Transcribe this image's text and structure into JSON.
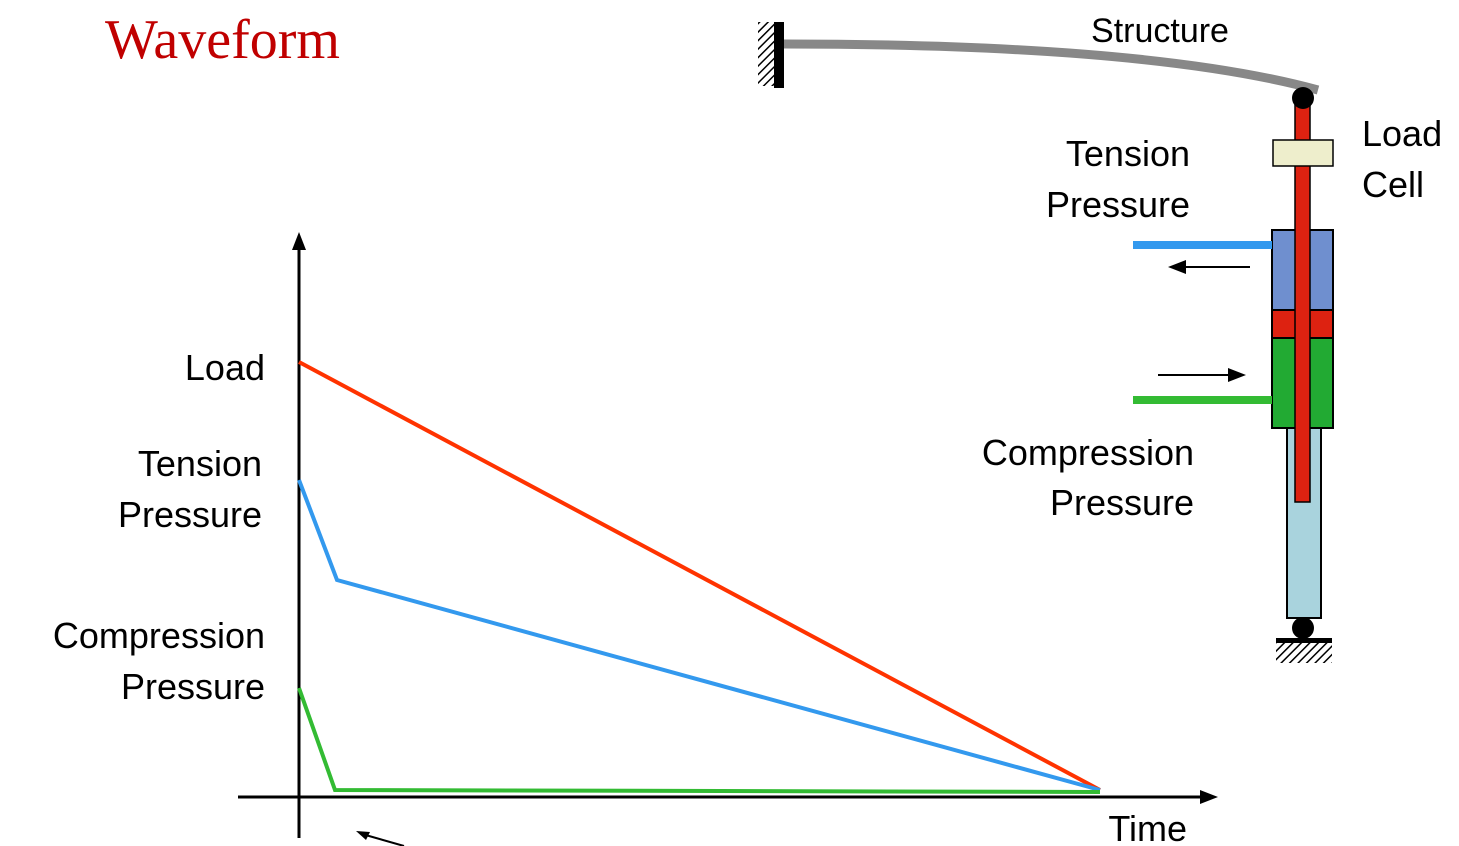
{
  "title": "Waveform",
  "colors": {
    "title": "#c00000",
    "load": "#ff3300",
    "tension": "#3399ee",
    "compression": "#33bb33",
    "structure": "#888888",
    "cylinder_blue": "#6f8fcf",
    "cylinder_green": "#22aa33",
    "piston_red": "#dd2211",
    "load_cell": "#eeeecc",
    "lower_tube": "#a9d3dd"
  },
  "graph": {
    "y_labels": {
      "load": [
        "Load"
      ],
      "tension": [
        "Tension",
        "Pressure"
      ],
      "compression": [
        "Compression",
        "Pressure"
      ]
    },
    "x_label": "Time"
  },
  "actuator": {
    "structure_label": "Structure",
    "load_cell_label": [
      "Load",
      "Cell"
    ],
    "tension_label": [
      "Tension",
      "Pressure"
    ],
    "compression_label": [
      "Compression",
      "Pressure"
    ]
  }
}
